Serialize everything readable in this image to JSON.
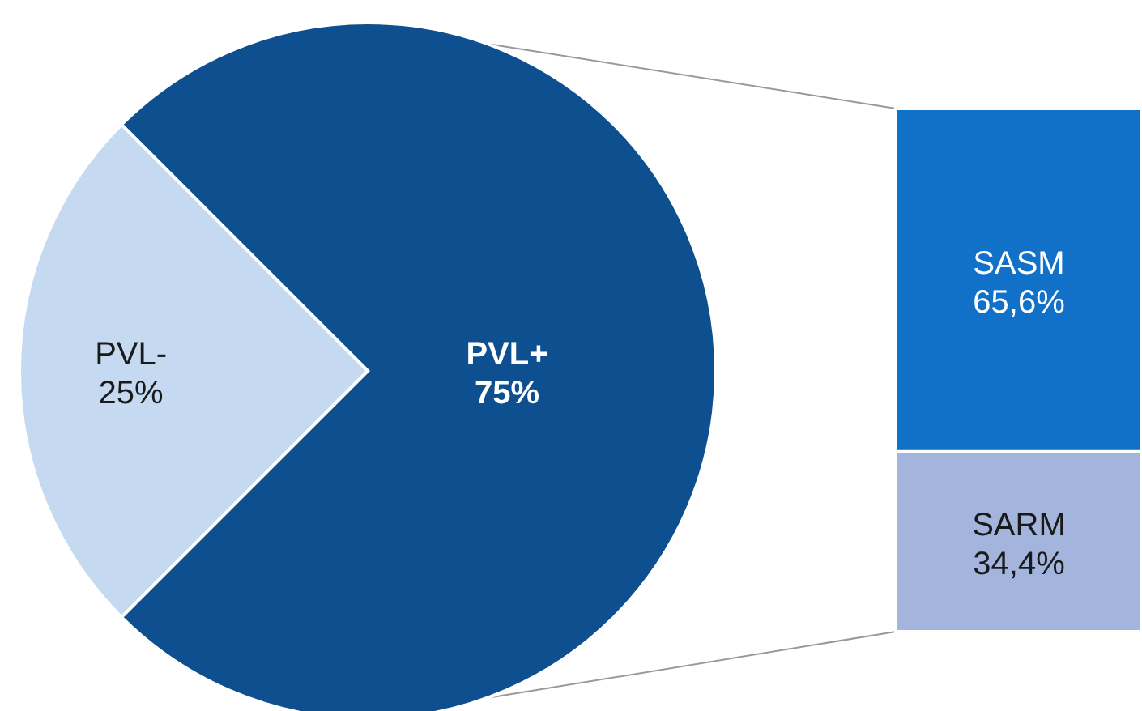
{
  "chart_data": [
    {
      "type": "pie",
      "categories": [
        "PVL+",
        "PVL-"
      ],
      "values": [
        75,
        25
      ],
      "colors": [
        "#0d4f8f",
        "#c5d9f0"
      ],
      "value_labels": [
        "75%",
        "25%"
      ]
    },
    {
      "type": "bar",
      "stacked": true,
      "categories": [
        null
      ],
      "series": [
        {
          "name": "SARM",
          "color": "#a3b5dd",
          "values": [
            34.4
          ],
          "value_labels": [
            "34,4%"
          ]
        },
        {
          "name": "SASM",
          "color": "#1170c8",
          "values": [
            65.6
          ],
          "value_labels": [
            "65,6%"
          ]
        }
      ]
    }
  ]
}
